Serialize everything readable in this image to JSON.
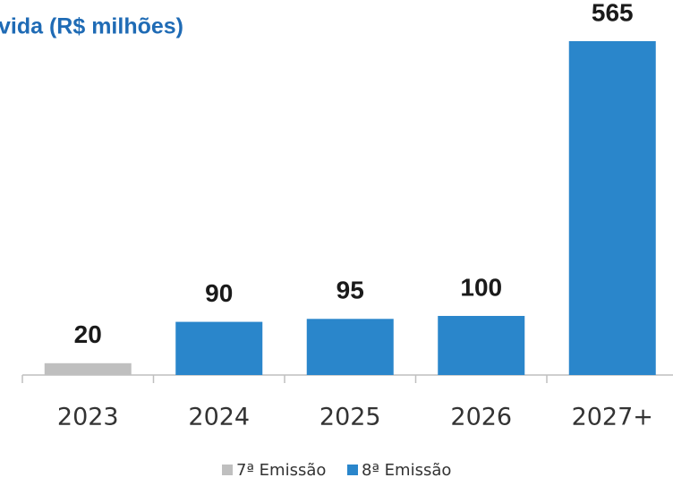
{
  "chart_data": {
    "type": "bar",
    "stacked": true,
    "title": "vida (R$ milhões)",
    "categories": [
      "2023",
      "2024",
      "2025",
      "2026",
      "2027+"
    ],
    "series": [
      {
        "name": "7ª Emissão",
        "color": "#bfbfbf",
        "values": [
          20,
          null,
          null,
          null,
          null
        ]
      },
      {
        "name": "8ª Emissão",
        "color": "#2a86cb",
        "values": [
          null,
          90,
          95,
          100,
          565
        ]
      }
    ],
    "legend": "bottom"
  }
}
